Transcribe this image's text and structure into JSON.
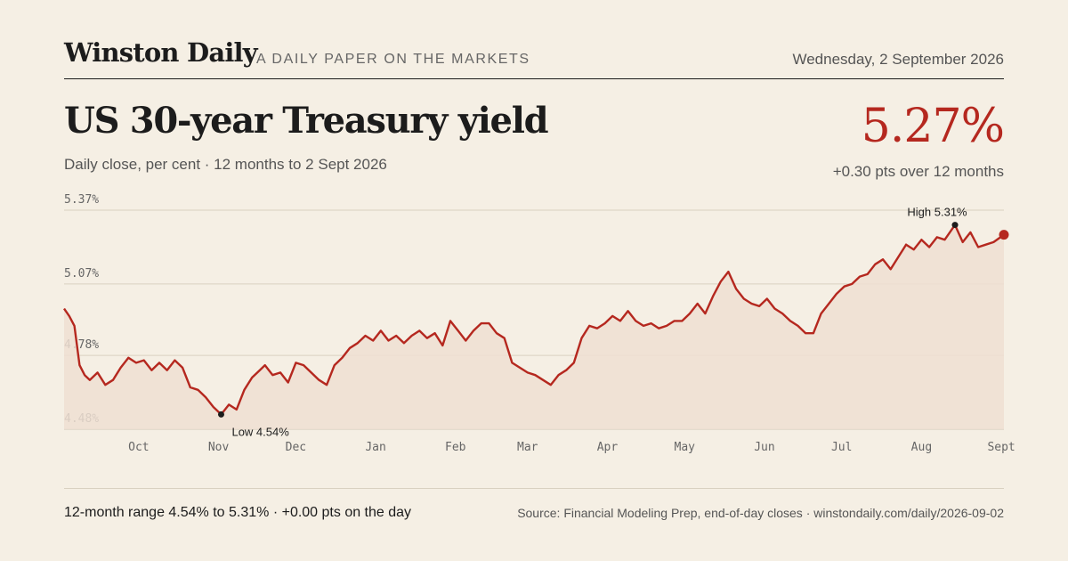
{
  "masthead": {
    "brand": "Winston Daily",
    "tagline": "A DAILY PAPER ON THE MARKETS",
    "date": "Wednesday, 2 September 2026"
  },
  "headline": {
    "title": "US 30-year Treasury yield",
    "subtitle": "Daily close, per cent · 12 months to 2 Sept 2026",
    "value": "5.27%",
    "change": "+0.30 pts over 12 months"
  },
  "colors": {
    "line": "#b5281f",
    "area": "#eedfd2",
    "grid": "#d9d0c0",
    "text": "#1c1c1c",
    "muted": "#666666"
  },
  "chart_data": {
    "type": "area",
    "title": "US 30-year Treasury yield",
    "subtitle": "Daily close, per cent · 12 months to 2 Sept 2026",
    "xlabel": "",
    "ylabel": "",
    "ylim": [
      4.48,
      5.37
    ],
    "yticks": [
      5.37,
      5.07,
      4.78,
      4.48
    ],
    "ytick_labels": [
      "5.37%",
      "5.07%",
      "4.78%",
      "4.48%"
    ],
    "grid": true,
    "legend": "none",
    "xlim": [
      "2025-09-02",
      "2026-09-02"
    ],
    "xticks": [
      {
        "date": "2025-10-01",
        "label": "Oct"
      },
      {
        "date": "2025-11-01",
        "label": "Nov"
      },
      {
        "date": "2025-12-01",
        "label": "Dec"
      },
      {
        "date": "2026-01-01",
        "label": "Jan"
      },
      {
        "date": "2026-02-01",
        "label": "Feb"
      },
      {
        "date": "2026-03-01",
        "label": "Mar"
      },
      {
        "date": "2026-04-01",
        "label": "Apr"
      },
      {
        "date": "2026-05-01",
        "label": "May"
      },
      {
        "date": "2026-06-01",
        "label": "Jun"
      },
      {
        "date": "2026-07-01",
        "label": "Jul"
      },
      {
        "date": "2026-08-01",
        "label": "Aug"
      },
      {
        "date": "2026-09-01",
        "label": "Sept"
      }
    ],
    "series": [
      {
        "points": [
          [
            "2025-09-02",
            4.97
          ],
          [
            "2025-09-04",
            4.94
          ],
          [
            "2025-09-06",
            4.9
          ],
          [
            "2025-09-08",
            4.74
          ],
          [
            "2025-09-10",
            4.7
          ],
          [
            "2025-09-12",
            4.68
          ],
          [
            "2025-09-15",
            4.71
          ],
          [
            "2025-09-18",
            4.66
          ],
          [
            "2025-09-21",
            4.68
          ],
          [
            "2025-09-24",
            4.73
          ],
          [
            "2025-09-27",
            4.77
          ],
          [
            "2025-09-30",
            4.75
          ],
          [
            "2025-10-03",
            4.76
          ],
          [
            "2025-10-06",
            4.72
          ],
          [
            "2025-10-09",
            4.75
          ],
          [
            "2025-10-12",
            4.72
          ],
          [
            "2025-10-15",
            4.76
          ],
          [
            "2025-10-18",
            4.73
          ],
          [
            "2025-10-21",
            4.65
          ],
          [
            "2025-10-24",
            4.64
          ],
          [
            "2025-10-27",
            4.61
          ],
          [
            "2025-10-30",
            4.57
          ],
          [
            "2025-11-02",
            4.54
          ],
          [
            "2025-11-05",
            4.58
          ],
          [
            "2025-11-08",
            4.56
          ],
          [
            "2025-11-11",
            4.64
          ],
          [
            "2025-11-14",
            4.69
          ],
          [
            "2025-11-17",
            4.72
          ],
          [
            "2025-11-19",
            4.74
          ],
          [
            "2025-11-22",
            4.7
          ],
          [
            "2025-11-25",
            4.71
          ],
          [
            "2025-11-28",
            4.67
          ],
          [
            "2025-12-01",
            4.75
          ],
          [
            "2025-12-04",
            4.74
          ],
          [
            "2025-12-07",
            4.71
          ],
          [
            "2025-12-10",
            4.68
          ],
          [
            "2025-12-13",
            4.66
          ],
          [
            "2025-12-16",
            4.74
          ],
          [
            "2025-12-19",
            4.77
          ],
          [
            "2025-12-22",
            4.81
          ],
          [
            "2025-12-25",
            4.83
          ],
          [
            "2025-12-28",
            4.86
          ],
          [
            "2025-12-31",
            4.84
          ],
          [
            "2026-01-03",
            4.88
          ],
          [
            "2026-01-06",
            4.84
          ],
          [
            "2026-01-09",
            4.86
          ],
          [
            "2026-01-12",
            4.83
          ],
          [
            "2026-01-15",
            4.86
          ],
          [
            "2026-01-18",
            4.88
          ],
          [
            "2026-01-21",
            4.85
          ],
          [
            "2026-01-24",
            4.87
          ],
          [
            "2026-01-27",
            4.82
          ],
          [
            "2026-01-30",
            4.92
          ],
          [
            "2026-02-02",
            4.88
          ],
          [
            "2026-02-05",
            4.84
          ],
          [
            "2026-02-08",
            4.88
          ],
          [
            "2026-02-11",
            4.91
          ],
          [
            "2026-02-14",
            4.91
          ],
          [
            "2026-02-17",
            4.87
          ],
          [
            "2026-02-20",
            4.85
          ],
          [
            "2026-02-23",
            4.75
          ],
          [
            "2026-02-26",
            4.73
          ],
          [
            "2026-03-01",
            4.71
          ],
          [
            "2026-03-04",
            4.7
          ],
          [
            "2026-03-07",
            4.68
          ],
          [
            "2026-03-10",
            4.66
          ],
          [
            "2026-03-13",
            4.7
          ],
          [
            "2026-03-16",
            4.72
          ],
          [
            "2026-03-19",
            4.75
          ],
          [
            "2026-03-22",
            4.85
          ],
          [
            "2026-03-25",
            4.9
          ],
          [
            "2026-03-28",
            4.89
          ],
          [
            "2026-03-31",
            4.91
          ],
          [
            "2026-04-03",
            4.94
          ],
          [
            "2026-04-06",
            4.92
          ],
          [
            "2026-04-09",
            4.96
          ],
          [
            "2026-04-12",
            4.92
          ],
          [
            "2026-04-15",
            4.9
          ],
          [
            "2026-04-18",
            4.91
          ],
          [
            "2026-04-21",
            4.89
          ],
          [
            "2026-04-24",
            4.9
          ],
          [
            "2026-04-27",
            4.92
          ],
          [
            "2026-04-30",
            4.92
          ],
          [
            "2026-05-03",
            4.95
          ],
          [
            "2026-05-06",
            4.99
          ],
          [
            "2026-05-09",
            4.95
          ],
          [
            "2026-05-12",
            5.02
          ],
          [
            "2026-05-15",
            5.08
          ],
          [
            "2026-05-18",
            5.12
          ],
          [
            "2026-05-21",
            5.05
          ],
          [
            "2026-05-24",
            5.01
          ],
          [
            "2026-05-27",
            4.99
          ],
          [
            "2026-05-30",
            4.98
          ],
          [
            "2026-06-02",
            5.01
          ],
          [
            "2026-06-05",
            4.97
          ],
          [
            "2026-06-08",
            4.95
          ],
          [
            "2026-06-11",
            4.92
          ],
          [
            "2026-06-14",
            4.9
          ],
          [
            "2026-06-17",
            4.87
          ],
          [
            "2026-06-20",
            4.87
          ],
          [
            "2026-06-23",
            4.95
          ],
          [
            "2026-06-26",
            4.99
          ],
          [
            "2026-06-29",
            5.03
          ],
          [
            "2026-07-02",
            5.06
          ],
          [
            "2026-07-05",
            5.07
          ],
          [
            "2026-07-08",
            5.1
          ],
          [
            "2026-07-11",
            5.11
          ],
          [
            "2026-07-14",
            5.15
          ],
          [
            "2026-07-17",
            5.17
          ],
          [
            "2026-07-20",
            5.13
          ],
          [
            "2026-07-23",
            5.18
          ],
          [
            "2026-07-26",
            5.23
          ],
          [
            "2026-07-29",
            5.21
          ],
          [
            "2026-08-01",
            5.25
          ],
          [
            "2026-08-04",
            5.22
          ],
          [
            "2026-08-07",
            5.26
          ],
          [
            "2026-08-10",
            5.25
          ],
          [
            "2026-08-14",
            5.31
          ],
          [
            "2026-08-17",
            5.24
          ],
          [
            "2026-08-20",
            5.28
          ],
          [
            "2026-08-23",
            5.22
          ],
          [
            "2026-08-26",
            5.23
          ],
          [
            "2026-08-29",
            5.24
          ],
          [
            "2026-09-02",
            5.27
          ]
        ]
      }
    ],
    "annotations": [
      {
        "label": "High 5.31%",
        "date": "2026-08-14",
        "value": 5.31
      },
      {
        "label": "Low 4.54%",
        "date": "2025-11-02",
        "value": 4.54
      }
    ],
    "last_point": {
      "date": "2026-09-02",
      "value": 5.27
    }
  },
  "footer": {
    "range_text": "12-month range 4.54% to 5.31% · +0.00 pts on the day",
    "source_text": "Source: Financial Modeling Prep, end-of-day closes · winstondaily.com/daily/2026-09-02"
  }
}
